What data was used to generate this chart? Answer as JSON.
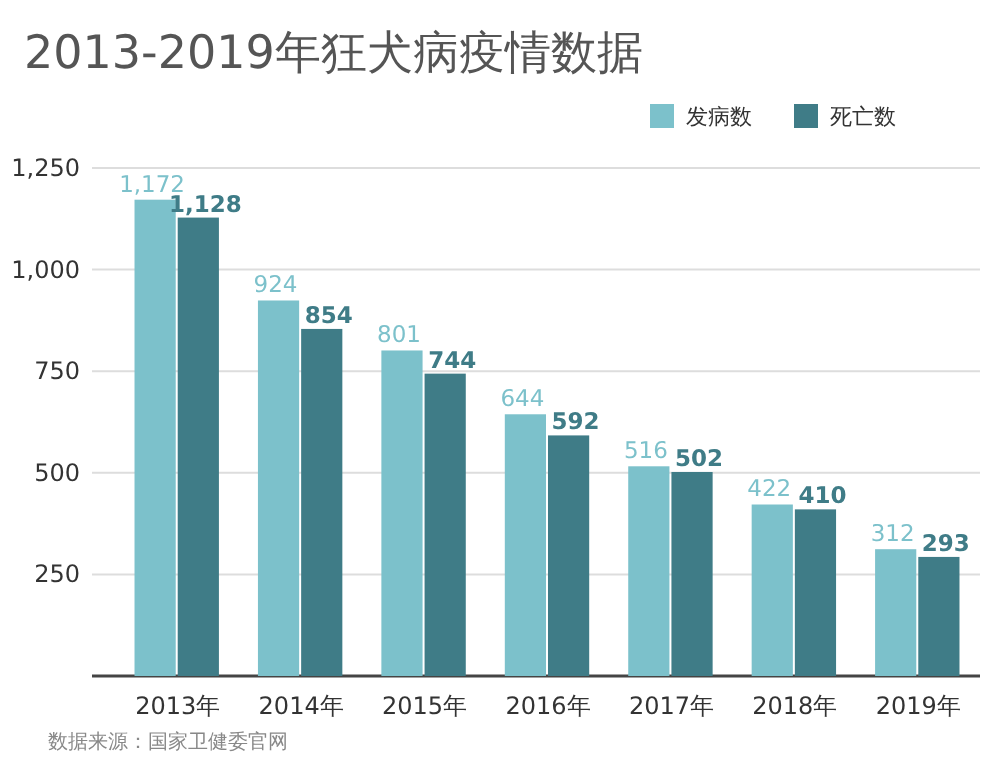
{
  "chart_data": {
    "type": "bar",
    "title": "2013-2019年狂犬病疫情数据",
    "categories": [
      "2013年",
      "2014年",
      "2015年",
      "2016年",
      "2017年",
      "2018年",
      "2019年"
    ],
    "series": [
      {
        "name": "发病数",
        "color": "#7cc1cb",
        "values": [
          1172,
          924,
          801,
          644,
          516,
          422,
          312
        ],
        "value_labels": [
          "1,172",
          "924",
          "801",
          "644",
          "516",
          "422",
          "312"
        ]
      },
      {
        "name": "死亡数",
        "color": "#3f7c87",
        "values": [
          1128,
          854,
          744,
          592,
          502,
          410,
          293
        ],
        "value_labels": [
          "1,128",
          "854",
          "744",
          "592",
          "502",
          "410",
          "293"
        ]
      }
    ],
    "ylim": [
      0,
      1250
    ],
    "yticks": [
      {
        "value": 0,
        "label": null
      },
      {
        "value": 250,
        "label": "250"
      },
      {
        "value": 500,
        "label": "500"
      },
      {
        "value": 750,
        "label": "750"
      },
      {
        "value": 1000,
        "label": "1,000"
      },
      {
        "value": 1250,
        "label": "1,250"
      }
    ],
    "grid": "y",
    "legend": "top right",
    "annotations": [
      "数据来源：国家卫健委官网"
    ]
  }
}
